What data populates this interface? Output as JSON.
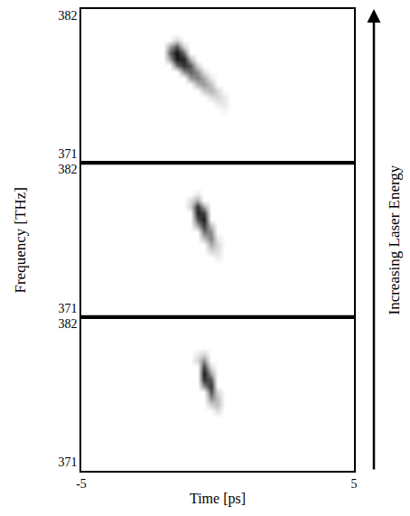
{
  "chart_data": {
    "type": "heatmap",
    "x_label": "Time [ps]",
    "y_label": "Frequency [THz]",
    "side_label": "Increasing Laser Energy",
    "xlim": [
      -5,
      5
    ],
    "xticks": [
      -5,
      5
    ],
    "ylim": [
      370.3,
      382.5
    ],
    "yticks": [
      371,
      382
    ],
    "zlim": [
      0,
      1
    ],
    "x": [
      -2.5,
      -2.25,
      -2,
      -1.75,
      -1.5,
      -1.25,
      -1,
      -0.75,
      -0.5,
      -0.25,
      0,
      0.25,
      0.5,
      0.75
    ],
    "y": [
      374,
      374.5,
      375,
      375.5,
      376,
      376.5,
      377,
      377.5,
      378,
      378.5,
      379,
      379.5,
      380,
      380.5,
      381
    ],
    "panels": [
      {
        "z": [
          [
            0,
            0,
            0,
            0,
            0,
            0,
            0,
            0,
            0,
            0,
            0,
            0,
            0,
            0
          ],
          [
            0,
            0,
            0,
            0,
            0,
            0,
            0,
            0,
            0,
            0,
            0,
            0.05,
            0,
            0
          ],
          [
            0,
            0,
            0,
            0,
            0,
            0,
            0,
            0,
            0,
            0,
            0.1,
            0.1,
            0,
            0
          ],
          [
            0,
            0,
            0,
            0,
            0,
            0,
            0,
            0,
            0,
            0.15,
            0.2,
            0.1,
            0,
            0
          ],
          [
            0,
            0,
            0,
            0,
            0,
            0,
            0,
            0,
            0.25,
            0.35,
            0.2,
            0,
            0,
            0
          ],
          [
            0,
            0,
            0,
            0,
            0,
            0,
            0,
            0.35,
            0.45,
            0.3,
            0,
            0,
            0,
            0
          ],
          [
            0,
            0,
            0,
            0,
            0,
            0,
            0.45,
            0.55,
            0.4,
            0.1,
            0,
            0,
            0,
            0
          ],
          [
            0,
            0,
            0,
            0,
            0,
            0.5,
            0.65,
            0.5,
            0.15,
            0,
            0,
            0,
            0,
            0
          ],
          [
            0,
            0,
            0,
            0,
            0.6,
            0.85,
            0.7,
            0.2,
            0,
            0,
            0,
            0,
            0,
            0
          ],
          [
            0,
            0,
            0,
            0.4,
            0.95,
            0.9,
            0.35,
            0,
            0,
            0,
            0,
            0,
            0,
            0
          ],
          [
            0,
            0,
            0,
            0.6,
            1,
            0.6,
            0,
            0,
            0,
            0,
            0,
            0,
            0,
            0
          ],
          [
            0,
            0,
            0,
            0.4,
            0.7,
            0.2,
            0,
            0,
            0,
            0,
            0,
            0,
            0,
            0
          ],
          [
            0,
            0,
            0,
            0,
            0.2,
            0,
            0,
            0,
            0,
            0,
            0,
            0,
            0,
            0
          ],
          [
            0,
            0,
            0,
            0,
            0,
            0,
            0,
            0,
            0,
            0,
            0,
            0,
            0,
            0
          ],
          [
            0,
            0,
            0,
            0,
            0,
            0,
            0,
            0,
            0,
            0,
            0,
            0,
            0,
            0
          ]
        ]
      },
      {
        "z": [
          [
            0,
            0,
            0,
            0,
            0,
            0,
            0,
            0,
            0,
            0,
            0,
            0,
            0,
            0
          ],
          [
            0,
            0,
            0,
            0,
            0,
            0,
            0,
            0,
            0,
            0,
            0,
            0,
            0,
            0
          ],
          [
            0,
            0,
            0,
            0,
            0,
            0,
            0,
            0,
            0,
            0,
            0.1,
            0,
            0,
            0
          ],
          [
            0,
            0,
            0,
            0,
            0,
            0,
            0,
            0,
            0,
            0.2,
            0.15,
            0,
            0,
            0
          ],
          [
            0,
            0,
            0,
            0,
            0,
            0,
            0,
            0,
            0,
            0.4,
            0.2,
            0,
            0,
            0
          ],
          [
            0,
            0,
            0,
            0,
            0,
            0,
            0,
            0,
            0.3,
            0.55,
            0.1,
            0,
            0,
            0
          ],
          [
            0,
            0,
            0,
            0,
            0,
            0,
            0,
            0,
            0.6,
            0.5,
            0,
            0,
            0,
            0
          ],
          [
            0,
            0,
            0,
            0,
            0,
            0,
            0,
            0.4,
            0.8,
            0.3,
            0,
            0,
            0,
            0
          ],
          [
            0,
            0,
            0,
            0,
            0,
            0,
            0,
            0.7,
            0.95,
            0,
            0,
            0,
            0,
            0
          ],
          [
            0,
            0,
            0,
            0,
            0,
            0,
            0,
            0.9,
            0.8,
            0,
            0,
            0,
            0,
            0
          ],
          [
            0,
            0,
            0,
            0,
            0,
            0,
            0.2,
            0.85,
            0.4,
            0,
            0,
            0,
            0,
            0
          ],
          [
            0,
            0,
            0,
            0,
            0,
            0,
            0.15,
            0.4,
            0,
            0,
            0,
            0,
            0,
            0
          ],
          [
            0,
            0,
            0,
            0,
            0,
            0,
            0,
            0.1,
            0,
            0,
            0,
            0,
            0,
            0
          ],
          [
            0,
            0,
            0,
            0,
            0,
            0,
            0,
            0,
            0,
            0,
            0,
            0,
            0,
            0
          ],
          [
            0,
            0,
            0,
            0,
            0,
            0,
            0,
            0,
            0,
            0,
            0,
            0,
            0,
            0
          ]
        ]
      },
      {
        "z": [
          [
            0,
            0,
            0,
            0,
            0,
            0,
            0,
            0,
            0,
            0,
            0,
            0,
            0,
            0
          ],
          [
            0,
            0,
            0,
            0,
            0,
            0,
            0,
            0,
            0,
            0,
            0,
            0,
            0,
            0
          ],
          [
            0,
            0,
            0,
            0,
            0,
            0,
            0,
            0,
            0,
            0,
            0.15,
            0,
            0,
            0
          ],
          [
            0,
            0,
            0,
            0,
            0,
            0,
            0,
            0,
            0,
            0.2,
            0.3,
            0,
            0,
            0
          ],
          [
            0,
            0,
            0,
            0,
            0,
            0,
            0,
            0,
            0,
            0.5,
            0.3,
            0,
            0,
            0
          ],
          [
            0,
            0,
            0,
            0,
            0,
            0,
            0,
            0,
            0,
            0.7,
            0.2,
            0,
            0,
            0
          ],
          [
            0,
            0,
            0,
            0,
            0,
            0,
            0,
            0,
            0.5,
            0.85,
            0,
            0,
            0,
            0
          ],
          [
            0,
            0,
            0,
            0,
            0,
            0,
            0,
            0,
            0.85,
            0.7,
            0,
            0,
            0,
            0
          ],
          [
            0,
            0,
            0,
            0,
            0,
            0,
            0,
            0,
            0.95,
            0.4,
            0,
            0,
            0,
            0
          ],
          [
            0,
            0,
            0,
            0,
            0,
            0,
            0,
            0,
            0.8,
            0.15,
            0,
            0,
            0,
            0
          ],
          [
            0,
            0,
            0,
            0,
            0,
            0,
            0,
            0.2,
            0.5,
            0,
            0,
            0,
            0,
            0
          ],
          [
            0,
            0,
            0,
            0,
            0,
            0,
            0,
            0.1,
            0.2,
            0,
            0,
            0,
            0,
            0
          ],
          [
            0,
            0,
            0,
            0,
            0,
            0,
            0,
            0,
            0,
            0,
            0,
            0,
            0,
            0
          ],
          [
            0,
            0,
            0,
            0,
            0,
            0,
            0,
            0,
            0,
            0,
            0,
            0,
            0,
            0
          ],
          [
            0,
            0,
            0,
            0,
            0,
            0,
            0,
            0,
            0,
            0,
            0,
            0,
            0,
            0
          ]
        ]
      }
    ]
  }
}
